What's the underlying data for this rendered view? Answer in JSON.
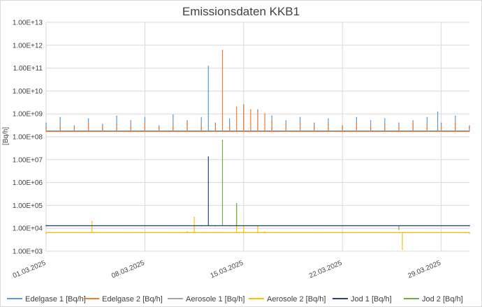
{
  "chart_data": {
    "type": "line",
    "title": "Emissionsdaten KKB1",
    "ylabel": "[Bq/h]",
    "xlabel": "",
    "y_scale": "log",
    "ylim": [
      1000,
      10000000000000
    ],
    "xlim": [
      "2025-03-01",
      "2025-03-31"
    ],
    "y_ticks": [
      "1.00E+03",
      "1.00E+04",
      "1.00E+05",
      "1.00E+06",
      "1.00E+07",
      "1.00E+08",
      "1.00E+09",
      "1.00E+10",
      "1.00E+11",
      "1.00E+12",
      "1.00E+13"
    ],
    "x_ticks": [
      "01.03.2025",
      "08.03.2025",
      "15.03.2025",
      "22.03.2025",
      "29.03.2025"
    ],
    "grid": true,
    "legend_position": "bottom",
    "series": [
      {
        "name": "Edelgase 1 [Bq/h]",
        "color": "#5B9BD5",
        "baseline": 180000000,
        "x": [
          "2025-03-01",
          "2025-03-02",
          "2025-03-03",
          "2025-03-04",
          "2025-03-05",
          "2025-03-06",
          "2025-03-07",
          "2025-03-08",
          "2025-03-09",
          "2025-03-10",
          "2025-03-11",
          "2025-03-12",
          "2025-03-12T12:00",
          "2025-03-13",
          "2025-03-14",
          "2025-03-15",
          "2025-03-16",
          "2025-03-17",
          "2025-03-18",
          "2025-03-19",
          "2025-03-20",
          "2025-03-21",
          "2025-03-22",
          "2025-03-23",
          "2025-03-24",
          "2025-03-25",
          "2025-03-26",
          "2025-03-27",
          "2025-03-28",
          "2025-03-28T18:00",
          "2025-03-29",
          "2025-03-30",
          "2025-03-31"
        ],
        "y": [
          400000000,
          700000000,
          300000000,
          600000000,
          350000000,
          800000000,
          500000000,
          700000000,
          300000000,
          900000000,
          500000000,
          700000000,
          120000000000,
          400000000,
          600000000,
          2500000000,
          1500000000,
          800000000,
          500000000,
          700000000,
          400000000,
          600000000,
          300000000,
          700000000,
          500000000,
          600000000,
          400000000,
          500000000,
          700000000,
          1200000000,
          400000000,
          800000000,
          300000000
        ]
      },
      {
        "name": "Edelgase 2 [Bq/h]",
        "color": "#ED7D31",
        "baseline": 170000000,
        "x": [
          "2025-03-01",
          "2025-03-02",
          "2025-03-03",
          "2025-03-04",
          "2025-03-05",
          "2025-03-06",
          "2025-03-07",
          "2025-03-08",
          "2025-03-09",
          "2025-03-10",
          "2025-03-11",
          "2025-03-12",
          "2025-03-13",
          "2025-03-13T12:00",
          "2025-03-14",
          "2025-03-14T12:00",
          "2025-03-15",
          "2025-03-15T12:00",
          "2025-03-16",
          "2025-03-16T12:00",
          "2025-03-17",
          "2025-03-18",
          "2025-03-19",
          "2025-03-20",
          "2025-03-21",
          "2025-03-22",
          "2025-03-23",
          "2025-03-24",
          "2025-03-25",
          "2025-03-26",
          "2025-03-27",
          "2025-03-28",
          "2025-03-29",
          "2025-03-30",
          "2025-03-31"
        ],
        "y": [
          250000000,
          300000000,
          250000000,
          400000000,
          300000000,
          350000000,
          300000000,
          400000000,
          250000000,
          300000000,
          400000000,
          300000000,
          350000000,
          600000000000,
          300000000,
          2000000000,
          2200000000,
          1500000000,
          1300000000,
          1000000000,
          500000000,
          350000000,
          400000000,
          300000000,
          350000000,
          300000000,
          400000000,
          300000000,
          350000000,
          300000000,
          400000000,
          350000000,
          300000000,
          400000000,
          250000000
        ]
      },
      {
        "name": "Aerosole 1 [Bq/h]",
        "color": "#A5A5A5",
        "baseline": 6500,
        "x": [
          "2025-03-01",
          "2025-03-15",
          "2025-03-31"
        ],
        "y": [
          6500,
          6500,
          6500
        ]
      },
      {
        "name": "Aerosole 2 [Bq/h]",
        "color": "#FFC000",
        "baseline": 6500,
        "x": [
          "2025-03-01",
          "2025-03-04",
          "2025-03-04T06:00",
          "2025-03-07",
          "2025-03-10",
          "2025-03-11",
          "2025-03-11T12:00",
          "2025-03-12",
          "2025-03-14",
          "2025-03-14T12:00",
          "2025-03-15",
          "2025-03-16",
          "2025-03-16T12:00",
          "2025-03-18",
          "2025-03-20",
          "2025-03-23",
          "2025-03-25",
          "2025-03-26",
          "2025-03-26T06:00",
          "2025-03-28",
          "2025-03-31"
        ],
        "y": [
          6000,
          6500,
          20000,
          6500,
          6500,
          7000,
          30000,
          6500,
          6500,
          100000,
          13000,
          12000,
          7000,
          6500,
          6500,
          6500,
          6500,
          6500,
          1200,
          6500,
          6000
        ]
      },
      {
        "name": "Jod 1 [Bq/h]",
        "color": "#264478",
        "baseline": 13000,
        "x": [
          "2025-03-01",
          "2025-03-12",
          "2025-03-12T12:00",
          "2025-03-13",
          "2025-03-31"
        ],
        "y": [
          13000,
          13000,
          13000000,
          13000,
          13000
        ]
      },
      {
        "name": "Jod 2 [Bq/h]",
        "color": "#70AD47",
        "baseline": 13000,
        "x": [
          "2025-03-01",
          "2025-03-13",
          "2025-03-13T12:00",
          "2025-03-14",
          "2025-03-14T12:00",
          "2025-03-15",
          "2025-03-26",
          "2025-03-31"
        ],
        "y": [
          13000,
          13000,
          70000000,
          13000,
          120000,
          13000,
          9000,
          13000
        ]
      }
    ]
  }
}
